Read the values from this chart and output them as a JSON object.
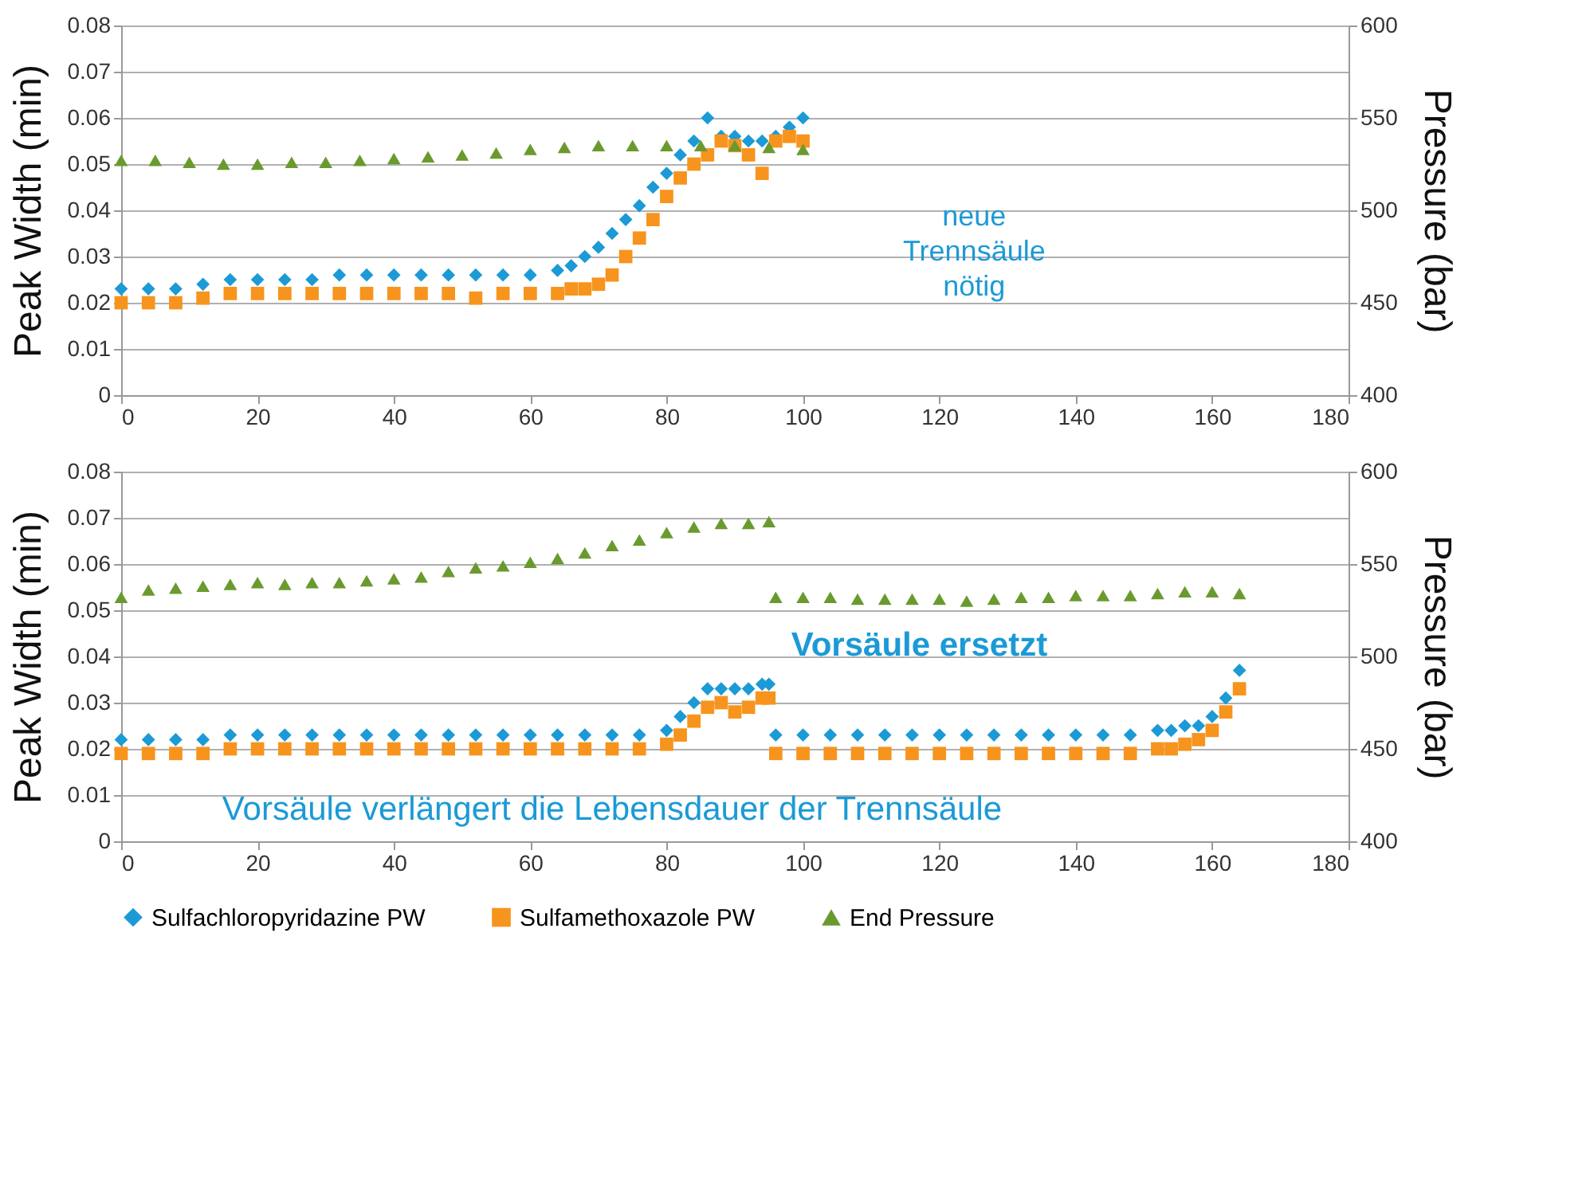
{
  "chart_data": [
    {
      "type": "scatter",
      "ylabel": "Peak Width (min)",
      "y2label": "Pressure (bar)",
      "xlim": [
        0,
        180
      ],
      "xticks": [
        0,
        20,
        40,
        60,
        80,
        100,
        120,
        140,
        160,
        180
      ],
      "ylim": [
        0,
        0.08
      ],
      "yticks": [
        0,
        0.01,
        0.02,
        0.03,
        0.04,
        0.05,
        0.06,
        0.07,
        0.08
      ],
      "y2lim": [
        400,
        600
      ],
      "y2ticks": [
        400,
        450,
        500,
        550,
        600
      ],
      "grid": "y",
      "legend": "bottom",
      "annotations": [
        "neue Trennsäule nötig"
      ],
      "series": [
        {
          "name": "Sulfachloropyridazine PW",
          "color": "#1b9ad6",
          "marker": "diamond",
          "x": [
            0,
            4,
            8,
            12,
            16,
            20,
            24,
            28,
            32,
            36,
            40,
            44,
            48,
            52,
            56,
            60,
            64,
            66,
            68,
            70,
            72,
            74,
            76,
            78,
            80,
            82,
            84,
            86,
            88,
            90,
            92,
            94,
            96,
            98,
            100
          ],
          "values": [
            0.023,
            0.023,
            0.023,
            0.024,
            0.025,
            0.025,
            0.025,
            0.025,
            0.026,
            0.026,
            0.026,
            0.026,
            0.026,
            0.026,
            0.026,
            0.026,
            0.027,
            0.028,
            0.03,
            0.032,
            0.035,
            0.038,
            0.041,
            0.045,
            0.048,
            0.052,
            0.055,
            0.06,
            0.056,
            0.056,
            0.055,
            0.055,
            0.056,
            0.058,
            0.06
          ]
        },
        {
          "name": "Sulfamethoxazole PW",
          "color": "#f7941d",
          "marker": "square",
          "x": [
            0,
            4,
            8,
            12,
            16,
            20,
            24,
            28,
            32,
            36,
            40,
            44,
            48,
            52,
            56,
            60,
            64,
            66,
            68,
            70,
            72,
            74,
            76,
            78,
            80,
            82,
            84,
            86,
            88,
            90,
            92,
            94,
            96,
            98,
            100
          ],
          "values": [
            0.02,
            0.02,
            0.02,
            0.021,
            0.022,
            0.022,
            0.022,
            0.022,
            0.022,
            0.022,
            0.022,
            0.022,
            0.022,
            0.021,
            0.022,
            0.022,
            0.022,
            0.023,
            0.023,
            0.024,
            0.026,
            0.03,
            0.034,
            0.038,
            0.043,
            0.047,
            0.05,
            0.052,
            0.055,
            0.054,
            0.052,
            0.048,
            0.055,
            0.056,
            0.055
          ]
        },
        {
          "name": "End Pressure",
          "color": "#6a9a2e",
          "marker": "triangle",
          "axis": "y2",
          "x": [
            0,
            5,
            10,
            15,
            20,
            25,
            30,
            35,
            40,
            45,
            50,
            55,
            60,
            65,
            70,
            75,
            80,
            85,
            90,
            95,
            100
          ],
          "values": [
            527,
            527,
            526,
            525,
            525,
            526,
            526,
            527,
            528,
            529,
            530,
            531,
            533,
            534,
            535,
            535,
            535,
            535,
            535,
            534,
            533
          ]
        }
      ]
    },
    {
      "type": "scatter",
      "ylabel": "Peak Width (min)",
      "y2label": "Pressure (bar)",
      "xlim": [
        0,
        180
      ],
      "xticks": [
        0,
        20,
        40,
        60,
        80,
        100,
        120,
        140,
        160,
        180
      ],
      "ylim": [
        0,
        0.08
      ],
      "yticks": [
        0,
        0.01,
        0.02,
        0.03,
        0.04,
        0.05,
        0.06,
        0.07,
        0.08
      ],
      "y2lim": [
        400,
        600
      ],
      "y2ticks": [
        400,
        450,
        500,
        550,
        600
      ],
      "grid": "y",
      "legend": "bottom",
      "annotations": [
        {
          "text": "Vorsäule ersetzt",
          "x": 95,
          "y": 0.034
        },
        "Vorsäule verlängert die Lebensdauer der Trennsäule"
      ],
      "series": [
        {
          "name": "Sulfachloropyridazine PW",
          "color": "#1b9ad6",
          "marker": "diamond",
          "x": [
            0,
            4,
            8,
            12,
            16,
            20,
            24,
            28,
            32,
            36,
            40,
            44,
            48,
            52,
            56,
            60,
            64,
            68,
            72,
            76,
            80,
            82,
            84,
            86,
            88,
            90,
            92,
            94,
            95,
            95.5,
            96,
            100,
            104,
            108,
            112,
            116,
            120,
            124,
            128,
            132,
            136,
            140,
            144,
            148,
            152,
            154,
            156,
            158,
            160,
            162,
            164
          ],
          "values": [
            0.022,
            0.022,
            0.022,
            0.022,
            0.023,
            0.023,
            0.023,
            0.023,
            0.023,
            0.023,
            0.023,
            0.023,
            0.023,
            0.023,
            0.023,
            0.023,
            0.023,
            0.023,
            0.023,
            0.023,
            0.024,
            0.027,
            0.03,
            0.033,
            0.033,
            0.033,
            0.033,
            0.034,
            0.034,
            null,
            0.023,
            0.023,
            0.023,
            0.023,
            0.023,
            0.023,
            0.023,
            0.023,
            0.023,
            0.023,
            0.023,
            0.023,
            0.023,
            0.023,
            0.024,
            0.024,
            0.025,
            0.025,
            0.027,
            0.031,
            0.037
          ]
        },
        {
          "name": "Sulfamethoxazole PW",
          "color": "#f7941d",
          "marker": "square",
          "x": [
            0,
            4,
            8,
            12,
            16,
            20,
            24,
            28,
            32,
            36,
            40,
            44,
            48,
            52,
            56,
            60,
            64,
            68,
            72,
            76,
            80,
            82,
            84,
            86,
            88,
            90,
            92,
            94,
            95,
            95.5,
            96,
            100,
            104,
            108,
            112,
            116,
            120,
            124,
            128,
            132,
            136,
            140,
            144,
            148,
            152,
            154,
            156,
            158,
            160,
            162,
            164
          ],
          "values": [
            0.019,
            0.019,
            0.019,
            0.019,
            0.02,
            0.02,
            0.02,
            0.02,
            0.02,
            0.02,
            0.02,
            0.02,
            0.02,
            0.02,
            0.02,
            0.02,
            0.02,
            0.02,
            0.02,
            0.02,
            0.021,
            0.023,
            0.026,
            0.029,
            0.03,
            0.028,
            0.029,
            0.031,
            0.031,
            null,
            0.019,
            0.019,
            0.019,
            0.019,
            0.019,
            0.019,
            0.019,
            0.019,
            0.019,
            0.019,
            0.019,
            0.019,
            0.019,
            0.019,
            0.02,
            0.02,
            0.021,
            0.022,
            0.024,
            0.028,
            0.033
          ]
        },
        {
          "name": "End Pressure",
          "color": "#6a9a2e",
          "marker": "triangle",
          "axis": "y2",
          "x": [
            0,
            4,
            8,
            12,
            16,
            20,
            24,
            28,
            32,
            36,
            40,
            44,
            48,
            52,
            56,
            60,
            64,
            68,
            72,
            76,
            80,
            84,
            88,
            92,
            95,
            95.5,
            96,
            100,
            104,
            108,
            112,
            116,
            120,
            124,
            128,
            132,
            136,
            140,
            144,
            148,
            152,
            156,
            160,
            164
          ],
          "values": [
            532,
            536,
            537,
            538,
            539,
            540,
            539,
            540,
            540,
            541,
            542,
            543,
            546,
            548,
            549,
            551,
            553,
            556,
            560,
            563,
            567,
            570,
            572,
            572,
            573,
            null,
            532,
            532,
            532,
            531,
            531,
            531,
            531,
            530,
            531,
            532,
            532,
            533,
            533,
            533,
            534,
            535,
            535,
            534
          ]
        }
      ]
    }
  ]
}
